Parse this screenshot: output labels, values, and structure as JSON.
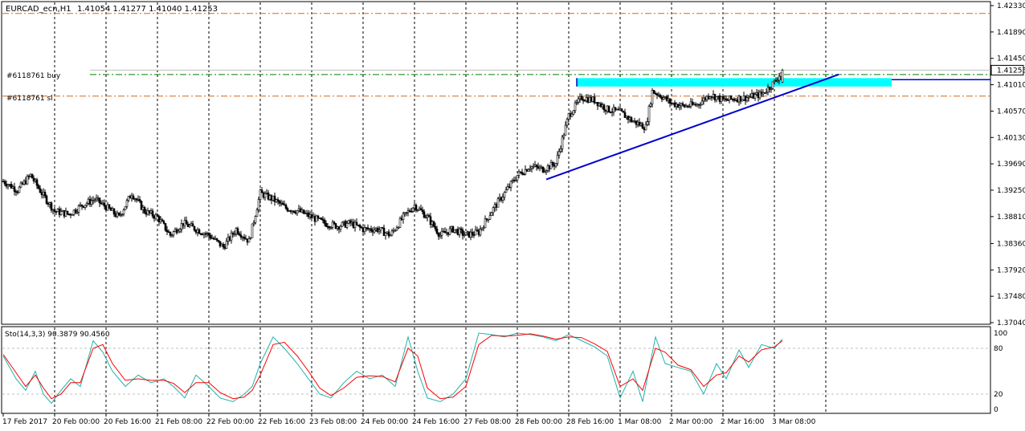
{
  "header": {
    "symbol": "EURCAD_ecn,H1",
    "ohlc": "1.41054 1.41277 1.41040 1.41253"
  },
  "order_labels": {
    "buy": "#6118761 buy",
    "sl": "#6118761 sl"
  },
  "current_price_label": "1.41253",
  "indicator": {
    "title": "Sto(14,3,3) 90.3879 90.4560",
    "yticks": [
      "100",
      "80",
      "20",
      "0"
    ],
    "main_color": "#20b2aa",
    "signal_color": "#ff0000"
  },
  "colors": {
    "bull_candle": "#ffffff",
    "bear_candle": "#000000",
    "trendline": "#0000cd",
    "zone": "#00ffff",
    "buy_line": "#008000",
    "sl_line": "#d2691e"
  },
  "chart_data": {
    "type": "candlestick",
    "symbol": "EURCAD_ecn",
    "timeframe": "H1",
    "last_ohlc": {
      "open": 1.41054,
      "high": 1.41277,
      "low": 1.4104,
      "close": 1.41253
    },
    "price_ticks": [
      "1.42330",
      "1.41890",
      "1.41450",
      "1.41010",
      "1.40570",
      "1.40130",
      "1.39690",
      "1.39250",
      "1.38810",
      "1.38360",
      "1.37920",
      "1.37480",
      "1.37040"
    ],
    "price_range": [
      1.3704,
      1.4233
    ],
    "time_ticks": [
      "17 Feb 2017",
      "20 Feb 00:00",
      "20 Feb 16:00",
      "21 Feb 08:00",
      "22 Feb 00:00",
      "22 Feb 16:00",
      "23 Feb 08:00",
      "24 Feb 00:00",
      "24 Feb 16:00",
      "27 Feb 08:00",
      "28 Feb 00:00",
      "28 Feb 16:00",
      "1 Mar 08:00",
      "2 Mar 00:00",
      "2 Mar 16:00",
      "3 Mar 08:00"
    ],
    "horizontal_lines": [
      {
        "name": "upper-dashdot",
        "price": 1.422,
        "style": "dash-dot",
        "color": "#d2691e"
      },
      {
        "name": "buy-entry",
        "price": 1.4118,
        "style": "dash-dot",
        "color": "#008000"
      },
      {
        "name": "stop-loss",
        "price": 1.4082,
        "style": "dash-dot",
        "color": "#d2691e"
      },
      {
        "name": "bid",
        "price": 1.41253,
        "style": "solid",
        "color": "#c0c0c0"
      },
      {
        "name": "resistance",
        "price": 1.41095,
        "style": "solid",
        "color": "#0000cd"
      }
    ],
    "trendline": {
      "from_bar": 338,
      "from_price": 1.3943,
      "to_bar": 520,
      "to_price": 1.4118
    },
    "resistance_zone": {
      "from_bar": 357,
      "to_bar": 553,
      "price_top": 1.4112,
      "price_bottom": 1.4098
    },
    "bar_count": 486,
    "close_path": [
      [
        0,
        1.394
      ],
      [
        9,
        1.3925
      ],
      [
        17,
        1.395
      ],
      [
        24,
        1.392
      ],
      [
        32,
        1.389
      ],
      [
        41,
        1.3885
      ],
      [
        49,
        1.39
      ],
      [
        57,
        1.391
      ],
      [
        65,
        1.3895
      ],
      [
        72,
        1.388
      ],
      [
        80,
        1.392
      ],
      [
        88,
        1.389
      ],
      [
        96,
        1.388
      ],
      [
        104,
        1.385
      ],
      [
        112,
        1.387
      ],
      [
        120,
        1.386
      ],
      [
        128,
        1.385
      ],
      [
        137,
        1.383
      ],
      [
        145,
        1.386
      ],
      [
        153,
        1.384
      ],
      [
        160,
        1.392
      ],
      [
        168,
        1.391
      ],
      [
        176,
        1.3895
      ],
      [
        184,
        1.389
      ],
      [
        192,
        1.388
      ],
      [
        200,
        1.387
      ],
      [
        208,
        1.3865
      ],
      [
        216,
        1.387
      ],
      [
        224,
        1.386
      ],
      [
        233,
        1.386
      ],
      [
        241,
        1.385
      ],
      [
        249,
        1.388
      ],
      [
        256,
        1.39
      ],
      [
        264,
        1.388
      ],
      [
        272,
        1.385
      ],
      [
        280,
        1.386
      ],
      [
        288,
        1.385
      ],
      [
        296,
        1.3855
      ],
      [
        304,
        1.389
      ],
      [
        312,
        1.392
      ],
      [
        320,
        1.395
      ],
      [
        328,
        1.3965
      ],
      [
        336,
        1.396
      ],
      [
        344,
        1.397
      ],
      [
        352,
        1.405
      ],
      [
        360,
        1.408
      ],
      [
        368,
        1.4075
      ],
      [
        376,
        1.406
      ],
      [
        384,
        1.4055
      ],
      [
        392,
        1.404
      ],
      [
        400,
        1.403
      ],
      [
        404,
        1.409
      ],
      [
        408,
        1.4085
      ],
      [
        416,
        1.407
      ],
      [
        424,
        1.4065
      ],
      [
        432,
        1.4068
      ],
      [
        440,
        1.4085
      ],
      [
        448,
        1.4075
      ],
      [
        456,
        1.4078
      ],
      [
        464,
        1.408
      ],
      [
        472,
        1.4085
      ],
      [
        480,
        1.4105
      ],
      [
        485,
        1.4125
      ]
    ],
    "stochastic": {
      "params": "14,3,3",
      "main_value": 90.3879,
      "signal_value": 90.456,
      "levels": [
        80,
        20
      ],
      "range": [
        0,
        100
      ],
      "main_path": [
        [
          0,
          70
        ],
        [
          8,
          40
        ],
        [
          14,
          25
        ],
        [
          20,
          50
        ],
        [
          25,
          20
        ],
        [
          30,
          8
        ],
        [
          36,
          25
        ],
        [
          42,
          40
        ],
        [
          48,
          30
        ],
        [
          56,
          90
        ],
        [
          62,
          75
        ],
        [
          68,
          50
        ],
        [
          76,
          30
        ],
        [
          84,
          45
        ],
        [
          92,
          35
        ],
        [
          100,
          40
        ],
        [
          106,
          30
        ],
        [
          113,
          15
        ],
        [
          120,
          45
        ],
        [
          128,
          30
        ],
        [
          135,
          15
        ],
        [
          143,
          10
        ],
        [
          150,
          20
        ],
        [
          155,
          30
        ],
        [
          160,
          60
        ],
        [
          168,
          95
        ],
        [
          175,
          80
        ],
        [
          183,
          60
        ],
        [
          190,
          40
        ],
        [
          197,
          20
        ],
        [
          204,
          15
        ],
        [
          212,
          35
        ],
        [
          220,
          50
        ],
        [
          228,
          40
        ],
        [
          236,
          45
        ],
        [
          244,
          30
        ],
        [
          252,
          95
        ],
        [
          258,
          50
        ],
        [
          264,
          15
        ],
        [
          272,
          10
        ],
        [
          280,
          20
        ],
        [
          288,
          40
        ],
        [
          296,
          100
        ],
        [
          304,
          98
        ],
        [
          312,
          95
        ],
        [
          320,
          100
        ],
        [
          328,
          98
        ],
        [
          336,
          95
        ],
        [
          344,
          90
        ],
        [
          352,
          98
        ],
        [
          360,
          90
        ],
        [
          368,
          82
        ],
        [
          376,
          70
        ],
        [
          384,
          15
        ],
        [
          392,
          50
        ],
        [
          398,
          10
        ],
        [
          406,
          95
        ],
        [
          412,
          60
        ],
        [
          420,
          55
        ],
        [
          428,
          50
        ],
        [
          436,
          20
        ],
        [
          444,
          60
        ],
        [
          450,
          40
        ],
        [
          458,
          78
        ],
        [
          464,
          55
        ],
        [
          472,
          85
        ],
        [
          480,
          80
        ],
        [
          485,
          92
        ]
      ],
      "signal_path": [
        [
          0,
          72
        ],
        [
          8,
          48
        ],
        [
          14,
          30
        ],
        [
          20,
          45
        ],
        [
          25,
          28
        ],
        [
          30,
          14
        ],
        [
          36,
          20
        ],
        [
          42,
          35
        ],
        [
          48,
          35
        ],
        [
          56,
          80
        ],
        [
          62,
          85
        ],
        [
          68,
          60
        ],
        [
          76,
          38
        ],
        [
          84,
          40
        ],
        [
          92,
          38
        ],
        [
          100,
          38
        ],
        [
          106,
          34
        ],
        [
          113,
          22
        ],
        [
          120,
          35
        ],
        [
          128,
          35
        ],
        [
          135,
          22
        ],
        [
          143,
          14
        ],
        [
          150,
          16
        ],
        [
          155,
          25
        ],
        [
          160,
          45
        ],
        [
          168,
          85
        ],
        [
          175,
          88
        ],
        [
          183,
          70
        ],
        [
          190,
          50
        ],
        [
          197,
          28
        ],
        [
          204,
          18
        ],
        [
          212,
          28
        ],
        [
          220,
          42
        ],
        [
          228,
          44
        ],
        [
          236,
          43
        ],
        [
          244,
          36
        ],
        [
          252,
          80
        ],
        [
          258,
          70
        ],
        [
          264,
          28
        ],
        [
          272,
          14
        ],
        [
          280,
          16
        ],
        [
          288,
          30
        ],
        [
          296,
          85
        ],
        [
          304,
          97
        ],
        [
          312,
          96
        ],
        [
          320,
          97
        ],
        [
          328,
          99
        ],
        [
          336,
          96
        ],
        [
          344,
          92
        ],
        [
          352,
          95
        ],
        [
          360,
          94
        ],
        [
          368,
          86
        ],
        [
          376,
          76
        ],
        [
          384,
          30
        ],
        [
          392,
          40
        ],
        [
          398,
          25
        ],
        [
          406,
          80
        ],
        [
          412,
          75
        ],
        [
          420,
          58
        ],
        [
          428,
          52
        ],
        [
          436,
          30
        ],
        [
          444,
          45
        ],
        [
          450,
          48
        ],
        [
          458,
          70
        ],
        [
          464,
          62
        ],
        [
          472,
          78
        ],
        [
          480,
          82
        ],
        [
          485,
          90
        ]
      ]
    }
  }
}
